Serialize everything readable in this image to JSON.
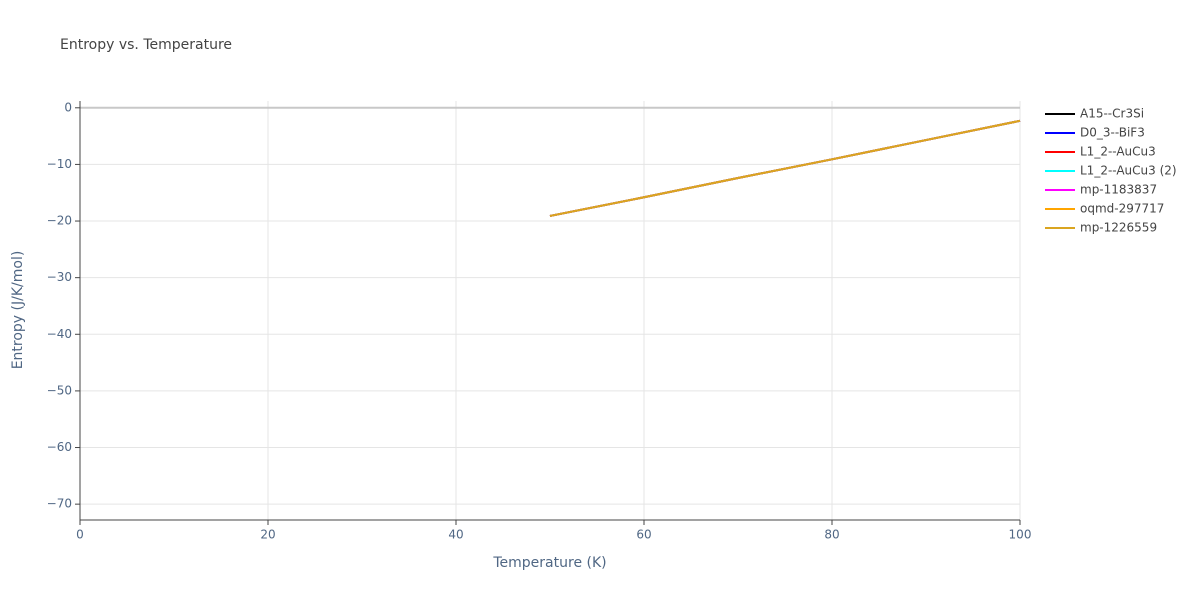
{
  "chart_data": {
    "type": "line",
    "title": "Entropy vs. Temperature",
    "x_label": "Temperature (K)",
    "y_label": "Entropy (J/K/mol)",
    "x": [
      50,
      60,
      70,
      80,
      90,
      100
    ],
    "series": [
      {
        "name": "A15--Cr3Si",
        "color": "#000000",
        "values": [
          -19.1,
          -15.8,
          -12.4,
          -9.1,
          -5.7,
          -2.3
        ]
      },
      {
        "name": "D0_3--BiF3",
        "color": "#0000ff",
        "values": [
          -19.1,
          -15.8,
          -12.4,
          -9.1,
          -5.7,
          -2.3
        ]
      },
      {
        "name": "L1_2--AuCu3",
        "color": "#ff0000",
        "values": [
          -19.1,
          -15.8,
          -12.4,
          -9.1,
          -5.7,
          -2.3
        ]
      },
      {
        "name": "L1_2--AuCu3 (2)",
        "color": "#00ffff",
        "values": [
          -19.1,
          -15.8,
          -12.4,
          -9.1,
          -5.7,
          -2.3
        ]
      },
      {
        "name": "mp-1183837",
        "color": "#ff00ff",
        "values": [
          -19.1,
          -15.8,
          -12.4,
          -9.1,
          -5.7,
          -2.3
        ]
      },
      {
        "name": "oqmd-297717",
        "color": "#ffa500",
        "values": [
          -19.1,
          -15.8,
          -12.4,
          -9.1,
          -5.7,
          -2.3
        ]
      },
      {
        "name": "mp-1226559",
        "color": "#daa520",
        "values": [
          -19.1,
          -15.8,
          -12.4,
          -9.1,
          -5.7,
          -2.3
        ]
      }
    ],
    "xlim": [
      0,
      100
    ],
    "xticks": [
      0,
      20,
      40,
      60,
      80,
      100
    ],
    "ylim": [
      -72.8,
      1.2
    ],
    "yticks": [
      0,
      {
        "value": -10,
        "label": "−10"
      },
      {
        "value": -20,
        "label": "−20"
      },
      {
        "value": -30,
        "label": "−30"
      },
      {
        "value": -40,
        "label": "−40"
      },
      {
        "value": -50,
        "label": "−50"
      },
      {
        "value": -60,
        "label": "−60"
      },
      {
        "value": -70,
        "label": "−70"
      }
    ],
    "grid": true,
    "legend": "right"
  }
}
